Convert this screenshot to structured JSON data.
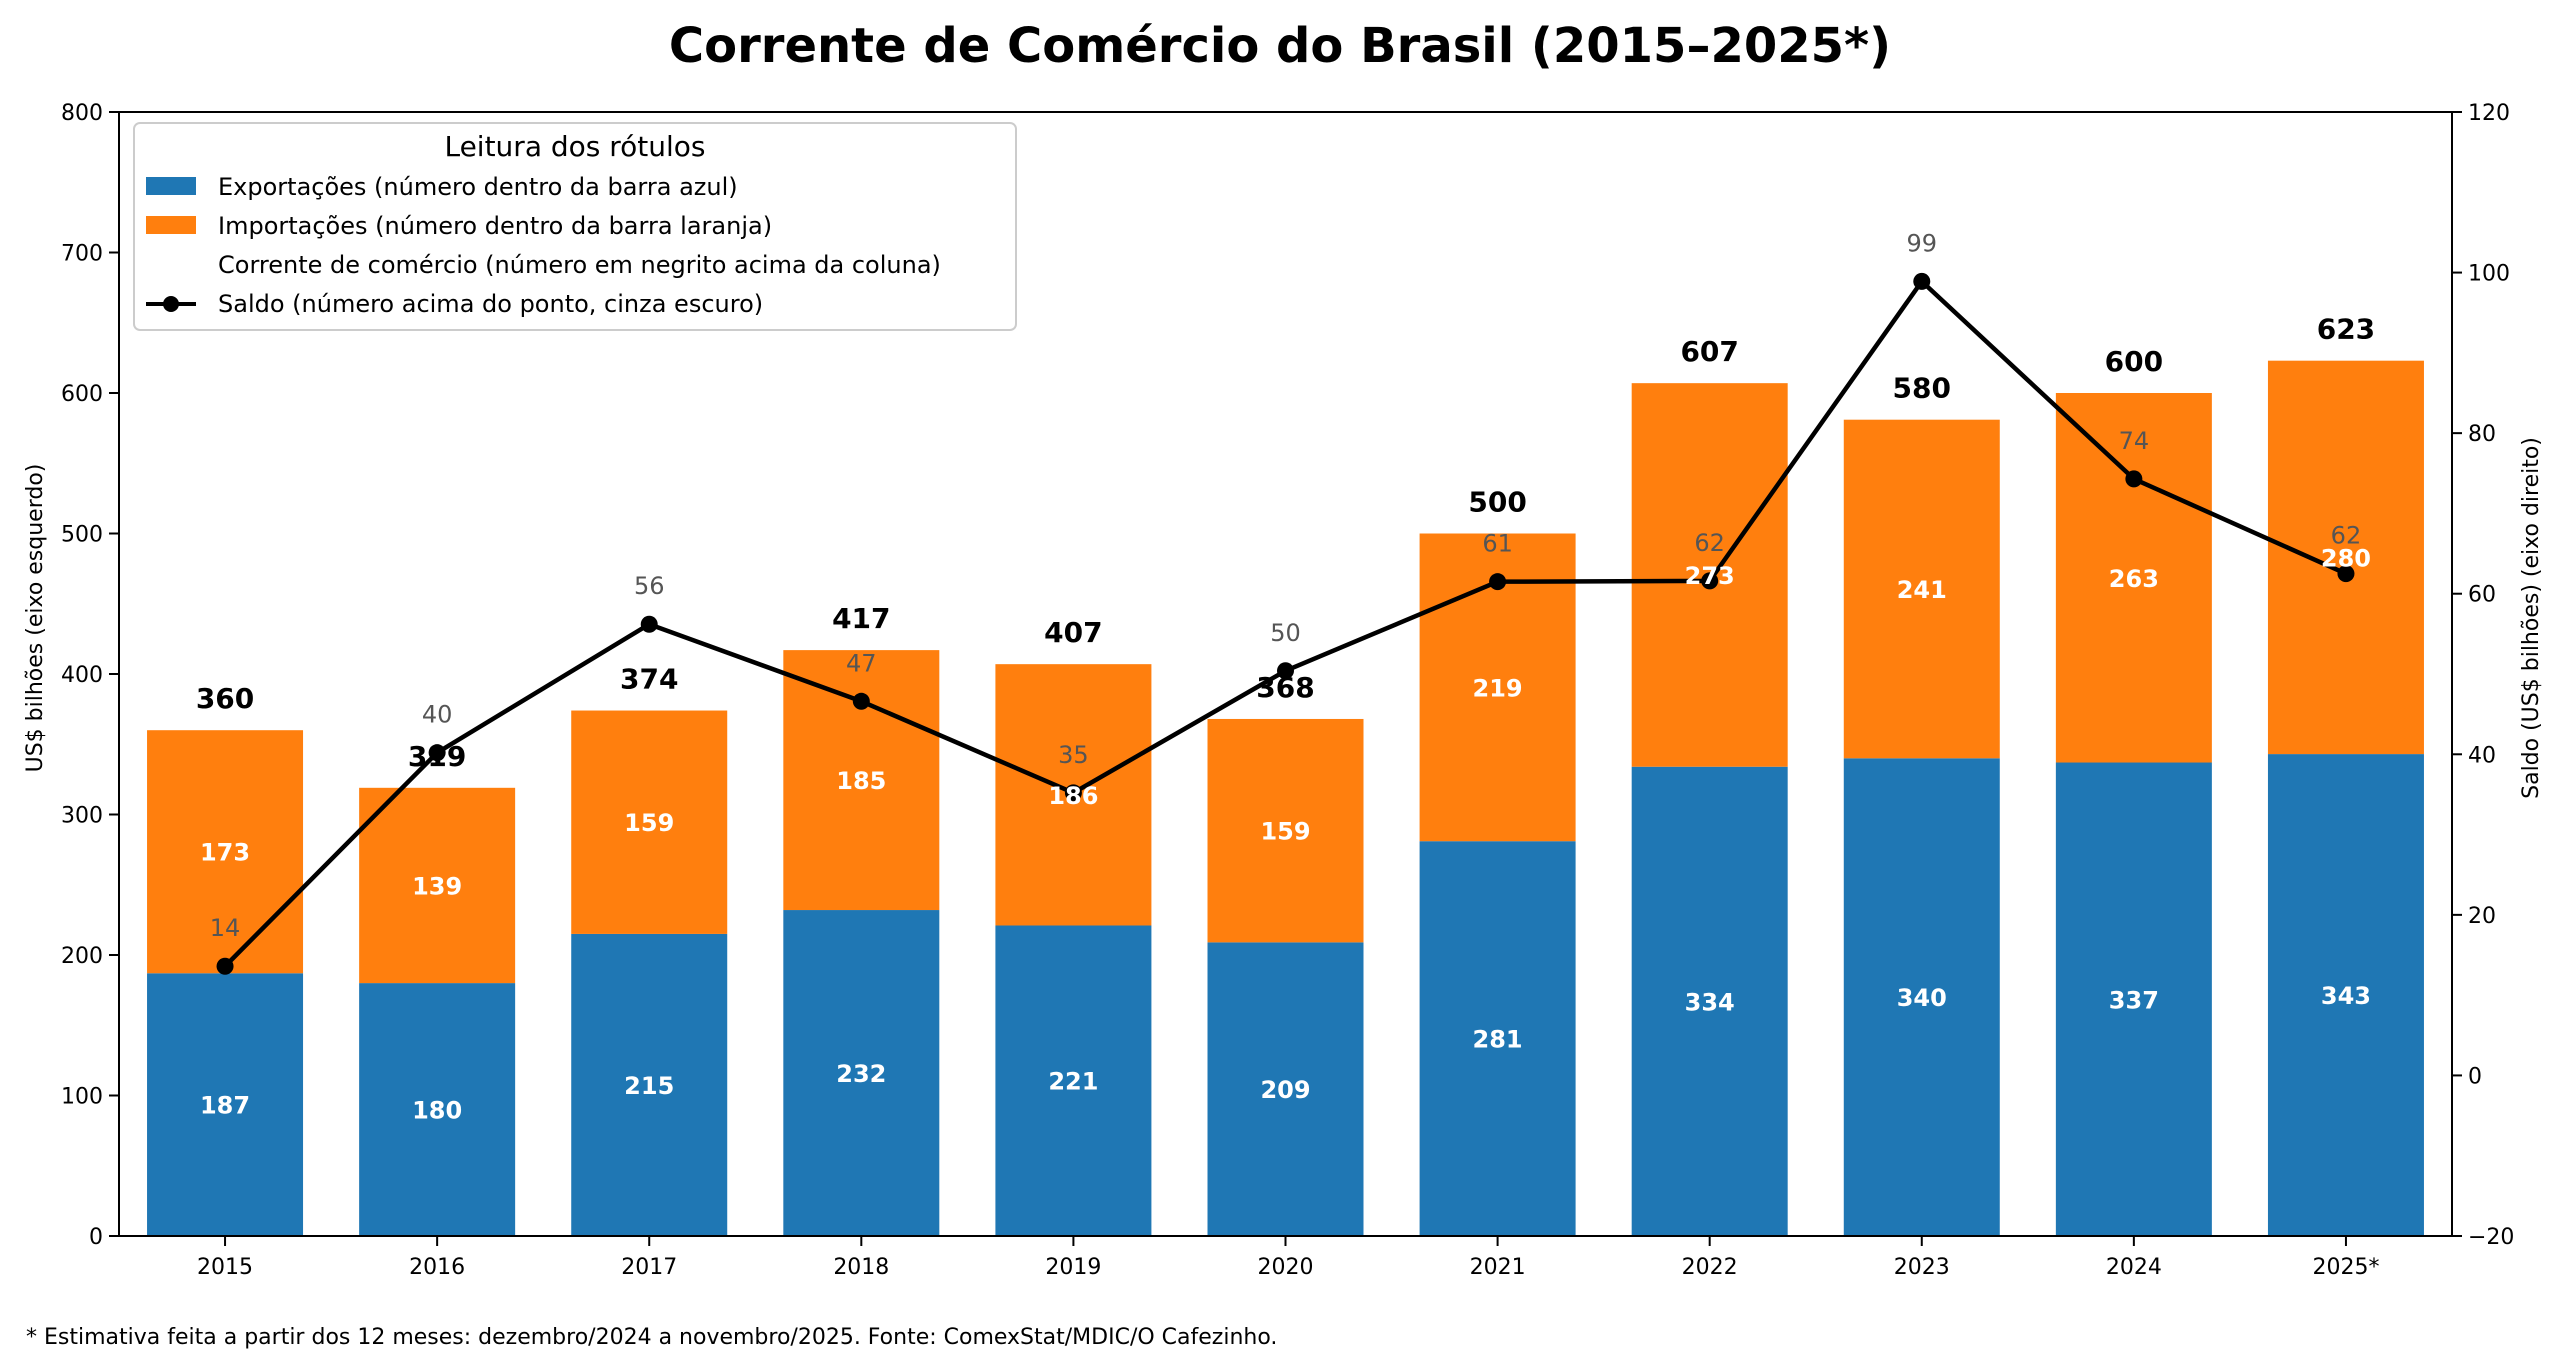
{
  "chart_data": {
    "type": "bar",
    "stacked": true,
    "title": "Corrente de Comércio do Brasil (2015–2025*)",
    "categories": [
      "2015",
      "2016",
      "2017",
      "2018",
      "2019",
      "2020",
      "2021",
      "2022",
      "2023",
      "2024",
      "2025*"
    ],
    "series": [
      {
        "name": "Exportações (número dentro da barra azul)",
        "color": "#1f77b4",
        "values": [
          187,
          180,
          215,
          232,
          221,
          209,
          281,
          334,
          340,
          337,
          343
        ]
      },
      {
        "name": "Importações (número dentro da barra laranja)",
        "color": "#ff7f0e",
        "values": [
          173,
          139,
          159,
          185,
          186,
          159,
          219,
          273,
          241,
          263,
          280
        ]
      }
    ],
    "totals": {
      "name": "Corrente de comércio (número em negrito acima da coluna)",
      "values": [
        360,
        319,
        374,
        417,
        407,
        368,
        500,
        607,
        580,
        600,
        623
      ]
    },
    "line": {
      "name": "Saldo (número acima do ponto, cinza escuro)",
      "color": "#000000",
      "axis": "right",
      "values": [
        14,
        40,
        56,
        47,
        35,
        50,
        61,
        62,
        99,
        74,
        62
      ],
      "plot_values": [
        13.6,
        40.2,
        56.2,
        46.6,
        35.2,
        50.4,
        61.5,
        61.6,
        98.9,
        74.3,
        62.5
      ]
    },
    "ylabel": "US$ bilhões (eixo esquerdo)",
    "y2label": "Saldo (US$ bilhões) (eixo direito)",
    "ylim": [
      0,
      800
    ],
    "y2lim": [
      -20,
      120
    ],
    "yticks": [
      0,
      100,
      200,
      300,
      400,
      500,
      600,
      700,
      800
    ],
    "y2ticks": [
      -20,
      0,
      20,
      40,
      60,
      80,
      100,
      120
    ],
    "legend": {
      "title": "Leitura dos rótulos",
      "placement": "top-left"
    },
    "grid": false,
    "footnote": "* Estimativa feita a partir dos 12 meses: dezembro/2024 a novembro/2025. Fonte: ComexStat/MDIC/O Cafezinho."
  }
}
